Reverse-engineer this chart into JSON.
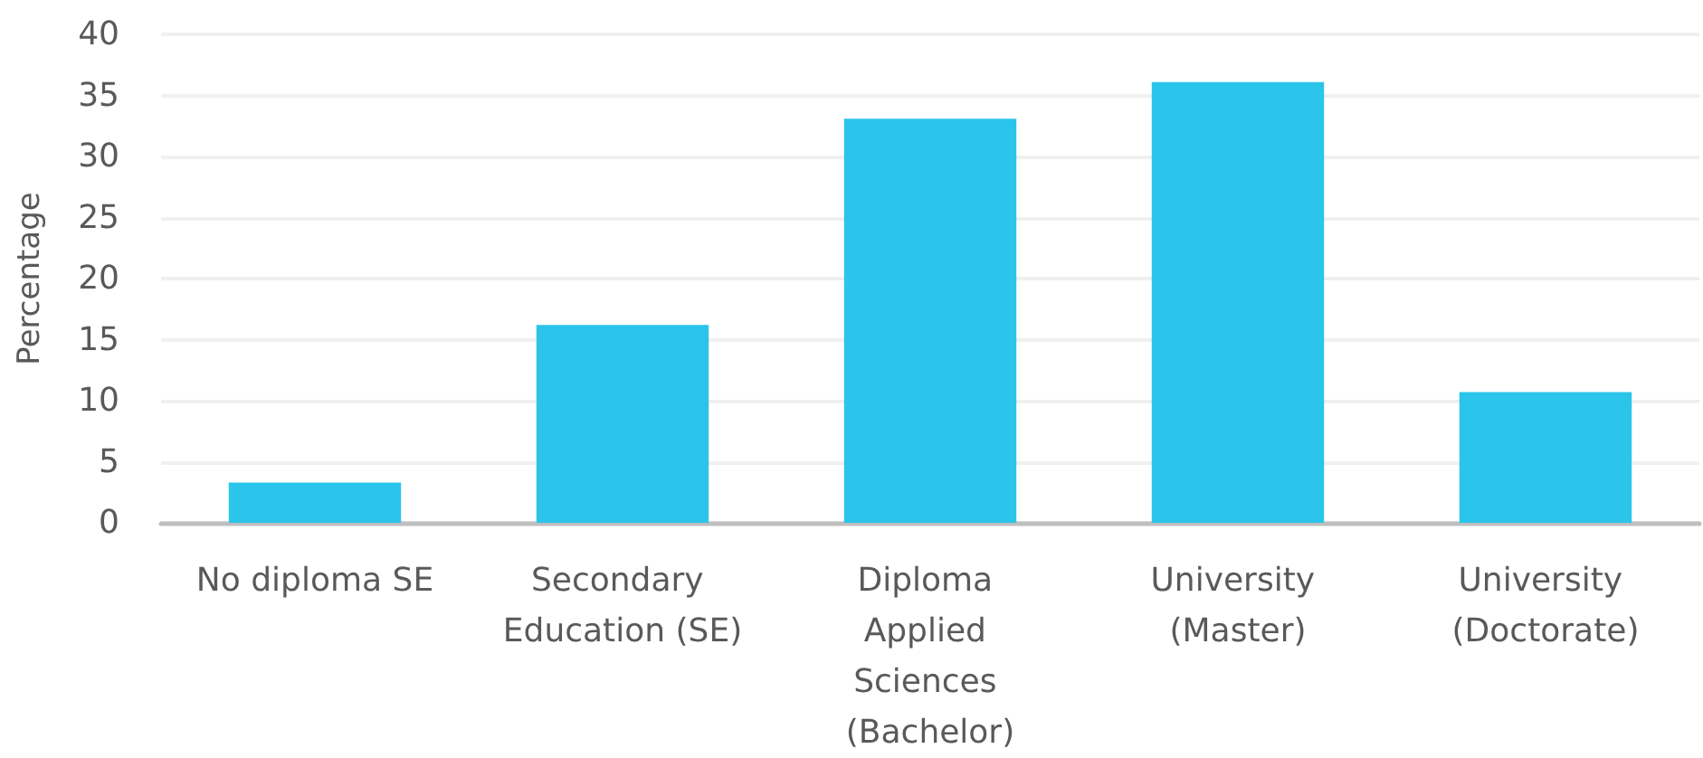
{
  "chart_data": {
    "type": "bar",
    "ylabel": "Percentage",
    "categories": [
      "No diploma SE",
      "Secondary Education (SE)",
      "Diploma Applied Sciences (Bachelor)",
      "University (Master)",
      "University (Doctorate)"
    ],
    "values": [
      3.3,
      16.2,
      33.1,
      36.1,
      10.7
    ],
    "color": "#2bc4ea",
    "ylim": [
      0,
      40
    ],
    "yticks": [
      0,
      5,
      10,
      15,
      20,
      25,
      30,
      35,
      40
    ],
    "grid": "y"
  }
}
